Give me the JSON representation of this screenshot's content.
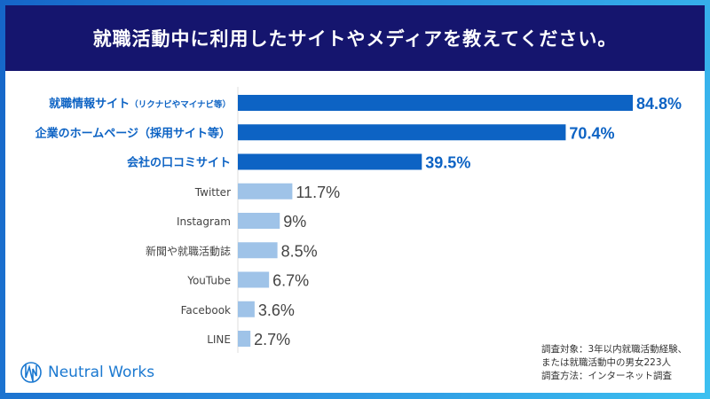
{
  "title": "就職活動中に利用したサイトやメディアを教えてください。",
  "chart_data": {
    "type": "bar",
    "orientation": "horizontal",
    "categories": [
      "就職情報サイト（リクナビやマイナビ等）",
      "企業のホームページ（採用サイト等）",
      "会社の口コミサイト",
      "Twitter",
      "Instagram",
      "新聞や就職活動誌",
      "YouTube",
      "Facebook",
      "LINE"
    ],
    "values": [
      84.8,
      70.4,
      39.5,
      11.7,
      9,
      8.5,
      6.7,
      3.6,
      2.7
    ],
    "labels": [
      "84.8%",
      "70.4%",
      "39.5%",
      "11.7%",
      "9%",
      "8.5%",
      "6.7%",
      "3.6%",
      "2.7%"
    ],
    "unit": "%",
    "highlight_count": 3,
    "colors": {
      "highlight": "#0d63c4",
      "normal": "#9fc3e8",
      "highlight_text": "#0d63c4",
      "normal_text": "#444444"
    }
  },
  "logo": {
    "text": "Neutral Works"
  },
  "note": [
    "調査対象：3年以内就職活動経験、",
    "または就職活動中の男女223人",
    "調査方法：インターネット調査"
  ]
}
